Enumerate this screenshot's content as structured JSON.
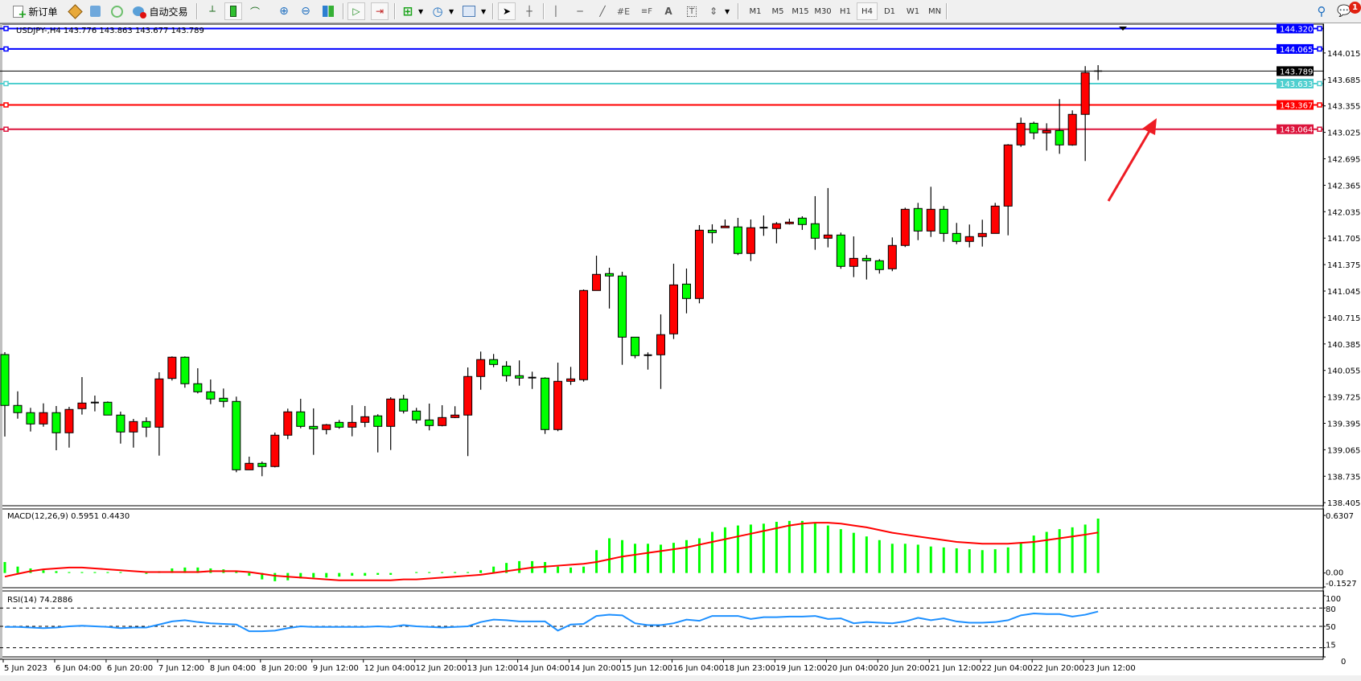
{
  "toolbar": {
    "new_order_label": "新订单",
    "auto_trading_label": "自动交易",
    "timeframes": [
      "M1",
      "M5",
      "M15",
      "M30",
      "H1",
      "H4",
      "D1",
      "W1",
      "MN"
    ],
    "active_timeframe": "H4",
    "notification_count": "1",
    "icons": [
      "new-order-icon",
      "history-icon",
      "terminal-icon",
      "signals-icon",
      "auto-trading-icon",
      "bar-chart-icon",
      "candlestick-icon",
      "line-chart-icon",
      "zoom-in-icon",
      "zoom-out-icon",
      "tile-windows-icon",
      "autoscroll-icon",
      "chart-shift-icon",
      "new-chart-icon",
      "periods-clock-icon",
      "indicators-icon",
      "cursor-icon",
      "crosshair-icon",
      "vertical-line-icon",
      "horizontal-line-icon",
      "trendline-icon",
      "equidistant-channel-icon",
      "fibonacci-icon",
      "text-icon",
      "text-label-icon",
      "arrows-icon",
      "search-icon",
      "notification-icon"
    ]
  },
  "chart": {
    "header": "USDJPY-,H4  143.776 143.863 143.677 143.789",
    "macd_label": "MACD(12,26,9) 0.5951 0.4430",
    "rsi_label": "RSI(14) 74.2886",
    "colors": {
      "bull": "#ff0000",
      "bear": "#00ff00",
      "macd_hist": "#00ff00",
      "signal": "#ff0000",
      "rsi": "#1e90ff"
    }
  },
  "chart_data": {
    "type": "candlestick",
    "symbol": "USDJPY-",
    "timeframe": "H4",
    "price_ticks": [
      "144.015",
      "143.685",
      "143.355",
      "143.025",
      "142.695",
      "142.365",
      "142.035",
      "141.705",
      "141.375",
      "141.045",
      "140.715",
      "140.385",
      "140.055",
      "139.725",
      "139.395",
      "139.065",
      "138.735",
      "138.405"
    ],
    "ylim": [
      138.367,
      144.375
    ],
    "time_labels": [
      "5 Jun 2023",
      "6 Jun 04:00",
      "6 Jun 20:00",
      "7 Jun 12:00",
      "8 Jun 04:00",
      "8 Jun 20:00",
      "9 Jun 12:00",
      "12 Jun 04:00",
      "12 Jun 20:00",
      "13 Jun 12:00",
      "14 Jun 04:00",
      "14 Jun 20:00",
      "15 Jun 12:00",
      "16 Jun 04:00",
      "18 Jun 23:00",
      "19 Jun 12:00",
      "20 Jun 04:00",
      "20 Jun 20:00",
      "21 Jun 12:00",
      "22 Jun 04:00",
      "22 Jun 20:00",
      "23 Jun 12:00"
    ],
    "ohlc": [
      [
        140.253,
        140.283,
        139.23,
        139.618
      ],
      [
        139.618,
        139.794,
        139.453,
        139.528
      ],
      [
        139.528,
        139.588,
        139.293,
        139.387
      ],
      [
        139.387,
        139.644,
        139.353,
        139.528
      ],
      [
        139.528,
        139.611,
        139.059,
        139.277
      ],
      [
        139.277,
        139.601,
        139.092,
        139.568
      ],
      [
        139.578,
        139.972,
        139.504,
        139.648
      ],
      [
        139.654,
        139.741,
        139.544,
        139.65
      ],
      [
        139.658,
        139.668,
        139.498,
        139.498
      ],
      [
        139.498,
        139.541,
        139.142,
        139.287
      ],
      [
        139.287,
        139.45,
        139.092,
        139.417
      ],
      [
        139.417,
        139.47,
        139.223,
        139.347
      ],
      [
        139.347,
        140.032,
        138.992,
        139.949
      ],
      [
        139.955,
        140.23,
        139.929,
        140.22
      ],
      [
        140.22,
        140.23,
        139.839,
        139.889
      ],
      [
        139.889,
        140.082,
        139.768,
        139.788
      ],
      [
        139.788,
        139.942,
        139.634,
        139.698
      ],
      [
        139.708,
        139.829,
        139.594,
        139.668
      ],
      [
        139.668,
        139.728,
        138.785,
        138.815
      ],
      [
        138.815,
        138.979,
        138.815,
        138.896
      ],
      [
        138.896,
        138.919,
        138.735,
        138.856
      ],
      [
        138.856,
        139.28,
        138.845,
        139.247
      ],
      [
        139.247,
        139.578,
        139.197,
        139.538
      ],
      [
        139.538,
        139.701,
        139.333,
        139.357
      ],
      [
        139.357,
        139.581,
        139.002,
        139.327
      ],
      [
        139.317,
        139.387,
        139.257,
        139.377
      ],
      [
        139.407,
        139.437,
        139.327,
        139.347
      ],
      [
        139.347,
        139.621,
        139.233,
        139.407
      ],
      [
        139.407,
        139.611,
        139.347,
        139.477
      ],
      [
        139.488,
        139.508,
        139.032,
        139.357
      ],
      [
        139.357,
        139.721,
        139.062,
        139.698
      ],
      [
        139.698,
        139.751,
        139.518,
        139.548
      ],
      [
        139.548,
        139.588,
        139.393,
        139.437
      ],
      [
        139.437,
        139.641,
        139.307,
        139.367
      ],
      [
        139.367,
        139.621,
        139.357,
        139.467
      ],
      [
        139.467,
        139.608,
        139.46,
        139.498
      ],
      [
        139.498,
        140.092,
        138.986,
        139.979
      ],
      [
        139.979,
        140.29,
        139.814,
        140.19
      ],
      [
        140.19,
        140.26,
        140.095,
        140.129
      ],
      [
        140.109,
        140.17,
        139.915,
        139.989
      ],
      [
        139.989,
        140.18,
        139.865,
        139.959
      ],
      [
        139.965,
        140.039,
        139.824,
        139.962
      ],
      [
        139.959,
        139.969,
        139.263,
        139.317
      ],
      [
        139.317,
        140.152,
        139.297,
        139.919
      ],
      [
        139.919,
        140.099,
        139.875,
        139.949
      ],
      [
        139.939,
        141.065,
        139.915,
        141.052
      ],
      [
        141.052,
        141.486,
        141.052,
        141.253
      ],
      [
        141.263,
        141.336,
        140.827,
        141.233
      ],
      [
        141.233,
        141.286,
        140.125,
        140.47
      ],
      [
        140.47,
        140.47,
        140.206,
        140.24
      ],
      [
        140.245,
        140.28,
        140.065,
        140.24
      ],
      [
        140.25,
        140.754,
        139.824,
        140.501
      ],
      [
        140.511,
        141.386,
        140.447,
        141.122
      ],
      [
        141.132,
        141.326,
        140.767,
        140.952
      ],
      [
        140.952,
        141.868,
        140.892,
        141.804
      ],
      [
        141.804,
        141.878,
        141.64,
        141.774
      ],
      [
        141.835,
        141.938,
        141.835,
        141.855
      ],
      [
        141.845,
        141.958,
        141.494,
        141.514
      ],
      [
        141.514,
        141.938,
        141.419,
        141.835
      ],
      [
        141.835,
        141.988,
        141.734,
        141.836
      ],
      [
        141.825,
        141.905,
        141.64,
        141.885
      ],
      [
        141.885,
        141.948,
        141.875,
        141.905
      ],
      [
        141.955,
        141.978,
        141.808,
        141.875
      ],
      [
        141.885,
        142.229,
        141.56,
        141.704
      ],
      [
        141.704,
        142.33,
        141.59,
        141.744
      ],
      [
        141.744,
        141.774,
        141.323,
        141.353
      ],
      [
        141.353,
        141.727,
        141.219,
        141.453
      ],
      [
        141.453,
        141.494,
        141.189,
        141.423
      ],
      [
        141.423,
        141.443,
        141.263,
        141.313
      ],
      [
        141.323,
        141.714,
        141.293,
        141.614
      ],
      [
        141.614,
        142.085,
        141.594,
        142.065
      ],
      [
        142.075,
        142.145,
        141.68,
        141.794
      ],
      [
        141.794,
        142.346,
        141.72,
        142.065
      ],
      [
        142.065,
        142.105,
        141.66,
        141.764
      ],
      [
        141.764,
        141.895,
        141.63,
        141.664
      ],
      [
        141.664,
        141.875,
        141.59,
        141.724
      ],
      [
        141.724,
        141.935,
        141.6,
        141.764
      ],
      [
        141.764,
        142.145,
        141.764,
        142.105
      ],
      [
        142.105,
        142.878,
        141.74,
        142.868
      ],
      [
        142.868,
        143.209,
        142.844,
        143.138
      ],
      [
        143.138,
        143.158,
        142.938,
        143.018
      ],
      [
        143.018,
        143.138,
        142.797,
        143.048
      ],
      [
        143.048,
        143.439,
        142.757,
        142.868
      ],
      [
        142.868,
        143.299,
        142.858,
        143.249
      ],
      [
        143.249,
        143.851,
        142.667,
        143.77
      ],
      [
        143.776,
        143.863,
        143.677,
        143.789
      ]
    ],
    "horizontal_lines": [
      {
        "price": "144.320",
        "color": "#0000ff"
      },
      {
        "price": "144.065",
        "color": "#0000ff"
      },
      {
        "price": "143.789",
        "color": "#000000"
      },
      {
        "price": "143.633",
        "color": "#4fcfcf"
      },
      {
        "price": "143.367",
        "color": "#ff0000"
      },
      {
        "price": "143.064",
        "color": "#dc143c"
      }
    ],
    "macd": {
      "ticks": [
        "0.6307",
        "0.00",
        "-0.1527"
      ],
      "ylim": [
        -0.1527,
        0.6307
      ],
      "main": [
        0.12,
        0.07,
        0.05,
        0.03,
        0.02,
        0.01,
        0.01,
        0.01,
        0.01,
        0.01,
        0.0,
        -0.01,
        0.02,
        0.05,
        0.06,
        0.06,
        0.05,
        0.04,
        0.02,
        -0.03,
        -0.07,
        -0.09,
        -0.08,
        -0.06,
        -0.05,
        -0.05,
        -0.04,
        -0.03,
        -0.03,
        -0.02,
        -0.02,
        0.0,
        0.01,
        0.01,
        0.01,
        0.01,
        0.01,
        0.03,
        0.07,
        0.11,
        0.13,
        0.13,
        0.12,
        0.07,
        0.06,
        0.07,
        0.25,
        0.38,
        0.36,
        0.32,
        0.32,
        0.31,
        0.33,
        0.36,
        0.38,
        0.45,
        0.5,
        0.52,
        0.53,
        0.54,
        0.56,
        0.57,
        0.57,
        0.55,
        0.52,
        0.48,
        0.44,
        0.4,
        0.36,
        0.32,
        0.32,
        0.31,
        0.29,
        0.28,
        0.27,
        0.26,
        0.25,
        0.26,
        0.28,
        0.33,
        0.41,
        0.45,
        0.48,
        0.5,
        0.53,
        0.5951
      ],
      "signal": [
        -0.04,
        -0.01,
        0.02,
        0.04,
        0.05,
        0.06,
        0.06,
        0.05,
        0.04,
        0.03,
        0.02,
        0.01,
        0.01,
        0.01,
        0.01,
        0.01,
        0.02,
        0.02,
        0.02,
        0.01,
        -0.01,
        -0.03,
        -0.04,
        -0.05,
        -0.06,
        -0.07,
        -0.08,
        -0.08,
        -0.08,
        -0.08,
        -0.08,
        -0.07,
        -0.07,
        -0.06,
        -0.05,
        -0.04,
        -0.03,
        -0.02,
        0.0,
        0.02,
        0.04,
        0.06,
        0.07,
        0.08,
        0.09,
        0.1,
        0.12,
        0.15,
        0.18,
        0.2,
        0.22,
        0.24,
        0.26,
        0.28,
        0.31,
        0.34,
        0.37,
        0.4,
        0.43,
        0.46,
        0.49,
        0.52,
        0.54,
        0.55,
        0.55,
        0.54,
        0.52,
        0.5,
        0.47,
        0.44,
        0.42,
        0.4,
        0.38,
        0.36,
        0.34,
        0.33,
        0.32,
        0.32,
        0.32,
        0.33,
        0.34,
        0.36,
        0.38,
        0.4,
        0.42,
        0.443
      ]
    },
    "rsi": {
      "ticks": [
        "100",
        "80",
        "50",
        "15",
        "0"
      ],
      "levels": [
        80,
        50,
        15
      ],
      "values": [
        49,
        49,
        48,
        47,
        48,
        50,
        51,
        50,
        49,
        47,
        48,
        48,
        53,
        58,
        60,
        57,
        55,
        54,
        53,
        42,
        42,
        43,
        47,
        50,
        49,
        49,
        49,
        49,
        49,
        50,
        49,
        52,
        50,
        49,
        48,
        49,
        50,
        57,
        61,
        60,
        58,
        58,
        58,
        43,
        53,
        54,
        67,
        69,
        68,
        55,
        52,
        52,
        55,
        61,
        59,
        67,
        67,
        67,
        62,
        65,
        65,
        66,
        66,
        67,
        62,
        63,
        55,
        57,
        56,
        55,
        58,
        64,
        60,
        63,
        58,
        56,
        56,
        57,
        60,
        68,
        71,
        70,
        70,
        66,
        69,
        74.2886
      ]
    }
  }
}
